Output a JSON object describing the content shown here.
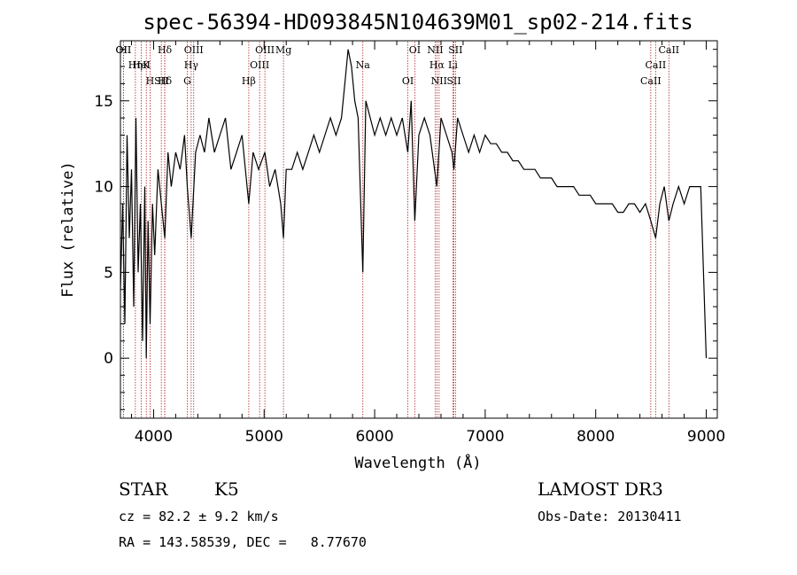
{
  "chart_data": {
    "type": "line",
    "title": "spec-56394-HD093845N104639M01_sp02-214.fits",
    "xlabel": "Wavelength (Å)",
    "ylabel": "Flux (relative)",
    "xlim": [
      3700,
      9100
    ],
    "ylim": [
      -3.5,
      18.5
    ],
    "xticks": [
      4000,
      5000,
      6000,
      7000,
      8000,
      9000
    ],
    "yticks": [
      0,
      5,
      10,
      15
    ],
    "series": [
      {
        "name": "flux",
        "x": [
          3700,
          3720,
          3740,
          3760,
          3780,
          3800,
          3820,
          3840,
          3860,
          3880,
          3900,
          3920,
          3934,
          3950,
          3968,
          3990,
          4010,
          4040,
          4070,
          4101,
          4130,
          4160,
          4200,
          4240,
          4280,
          4305,
          4340,
          4380,
          4420,
          4460,
          4500,
          4550,
          4600,
          4650,
          4700,
          4750,
          4800,
          4861,
          4900,
          4950,
          5007,
          5050,
          5100,
          5150,
          5175,
          5200,
          5250,
          5300,
          5350,
          5400,
          5450,
          5500,
          5550,
          5600,
          5650,
          5700,
          5730,
          5760,
          5790,
          5820,
          5850,
          5893,
          5920,
          5960,
          6000,
          6050,
          6100,
          6150,
          6200,
          6250,
          6300,
          6330,
          6363,
          6400,
          6450,
          6500,
          6563,
          6600,
          6650,
          6700,
          6717,
          6750,
          6800,
          6850,
          6900,
          6950,
          7000,
          7050,
          7100,
          7150,
          7200,
          7250,
          7300,
          7350,
          7400,
          7450,
          7500,
          7550,
          7600,
          7650,
          7700,
          7750,
          7800,
          7850,
          7900,
          7950,
          8000,
          8050,
          8100,
          8150,
          8200,
          8250,
          8300,
          8350,
          8400,
          8450,
          8498,
          8542,
          8580,
          8620,
          8662,
          8700,
          8750,
          8800,
          8850,
          8900,
          8950,
          9000
        ],
        "y": [
          4,
          9,
          2,
          13,
          7,
          11,
          3,
          14,
          5,
          9,
          1,
          10,
          0,
          8,
          2,
          9,
          6,
          11,
          9,
          7,
          12,
          10,
          12,
          11,
          13,
          10,
          7,
          12,
          13,
          12,
          14,
          12,
          13,
          14,
          11,
          12,
          13,
          9,
          12,
          11,
          12,
          10,
          11,
          9,
          7,
          11,
          11,
          12,
          11,
          12,
          13,
          12,
          13,
          14,
          13,
          14,
          16,
          18,
          17,
          15,
          14,
          5,
          15,
          14,
          13,
          14,
          13,
          14,
          13,
          14,
          12,
          15,
          8,
          13,
          14,
          13,
          10,
          14,
          13,
          12,
          11,
          14,
          13,
          12,
          13,
          12,
          13,
          12.5,
          12.5,
          12,
          12,
          11.5,
          11.5,
          11,
          11,
          11,
          10.5,
          10.5,
          10.5,
          10,
          10,
          10,
          10,
          9.5,
          9.5,
          9.5,
          9,
          9,
          9,
          9,
          8.5,
          8.5,
          9,
          9,
          8.5,
          9,
          8,
          7,
          9,
          10,
          8,
          9,
          10,
          9,
          10,
          10,
          10,
          0
        ]
      }
    ],
    "line_markers": [
      {
        "label": "Hδ",
        "wavelength": 4101
      },
      {
        "label": "K",
        "wavelength": 3934
      },
      {
        "label": "Hδ",
        "wavelength": 4101
      },
      {
        "label": "OII",
        "wavelength": 3727
      },
      {
        "label": "HeI",
        "wavelength": 3889
      },
      {
        "label": "SII",
        "wavelength": 4070
      },
      {
        "label": "OII",
        "wavelength": 3727
      },
      {
        "label": "Hη",
        "wavelength": 3835
      },
      {
        "label": "H",
        "wavelength": 3968
      },
      {
        "label": "OIII",
        "wavelength": 4363
      },
      {
        "label": "Hγ",
        "wavelength": 4340
      },
      {
        "label": "G",
        "wavelength": 4305
      },
      {
        "label": "OIII",
        "wavelength": 5007
      },
      {
        "label": "OIII",
        "wavelength": 4959
      },
      {
        "label": "Hβ",
        "wavelength": 4861
      },
      {
        "label": "Mg",
        "wavelength": 5175
      },
      {
        "label": "Na",
        "wavelength": 5893
      },
      {
        "label": "OI",
        "wavelength": 6300
      },
      {
        "label": "OI",
        "wavelength": 6363
      },
      {
        "label": "Hα",
        "wavelength": 6563
      },
      {
        "label": "SII",
        "wavelength": 6717
      },
      {
        "label": "NII",
        "wavelength": 6548
      },
      {
        "label": "Li",
        "wavelength": 6708
      },
      {
        "label": "NII",
        "wavelength": 6583
      },
      {
        "label": "SII",
        "wavelength": 6731
      },
      {
        "label": "CaII",
        "wavelength": 8542
      },
      {
        "label": "CaII",
        "wavelength": 8498
      },
      {
        "label": "CaII",
        "wavelength": 8662
      }
    ],
    "marker_color": "#b22222"
  },
  "info": {
    "object_class": "STAR",
    "subclass": "K5",
    "survey": "LAMOST DR3",
    "cz": "cz = 82.2 ± 9.2 km/s",
    "obs_date": "Obs-Date: 20130411",
    "coords": "RA = 143.58539, DEC =   8.77670"
  }
}
